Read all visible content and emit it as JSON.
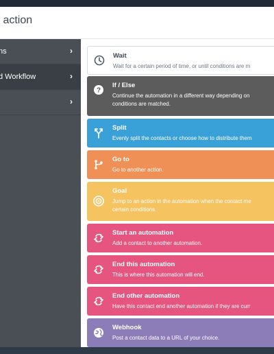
{
  "modal": {
    "title": "y action"
  },
  "sidebar": {
    "items": [
      {
        "label": "ns",
        "chevron": "›"
      },
      {
        "label": "d Workflow",
        "chevron": "›"
      },
      {
        "label": "",
        "chevron": "›"
      }
    ]
  },
  "actions": [
    {
      "title": "Wait",
      "desc": "Wait for a certain period of time, or until conditions are m",
      "color": "#ffffff",
      "icon": "clock-icon"
    },
    {
      "title": "If / Else",
      "desc": "Continue the automation in a different way depending on",
      "desc2": "conditions are matched.",
      "color": "#5c5c5c",
      "icon": "question-icon"
    },
    {
      "title": "Split",
      "desc": "Evenly split the contacts or choose how to distribute them",
      "color": "#3aa0d8",
      "icon": "split-icon"
    },
    {
      "title": "Go to",
      "desc": "Go to another action.",
      "color": "#ef9156",
      "icon": "goto-icon"
    },
    {
      "title": "Goal",
      "desc": "Jump to an action in the automation when the contact me",
      "desc2": "certain conditions.",
      "color": "#f6c361",
      "icon": "target-icon"
    },
    {
      "title": "Start an automation",
      "desc": "Add a contact to another automation.",
      "color": "#e5557f",
      "icon": "automation-icon"
    },
    {
      "title": "End this automation",
      "desc": "This is where this automation will end.",
      "color": "#e5557f",
      "icon": "automation-icon"
    },
    {
      "title": "End other automation",
      "desc": "Have this contact end another automation if they are curr",
      "color": "#e5557f",
      "icon": "automation-icon"
    },
    {
      "title": "Webhook",
      "desc": "Post a contact data to a URL of your choice.",
      "color": "#8c7db8",
      "icon": "globe-icon"
    }
  ]
}
